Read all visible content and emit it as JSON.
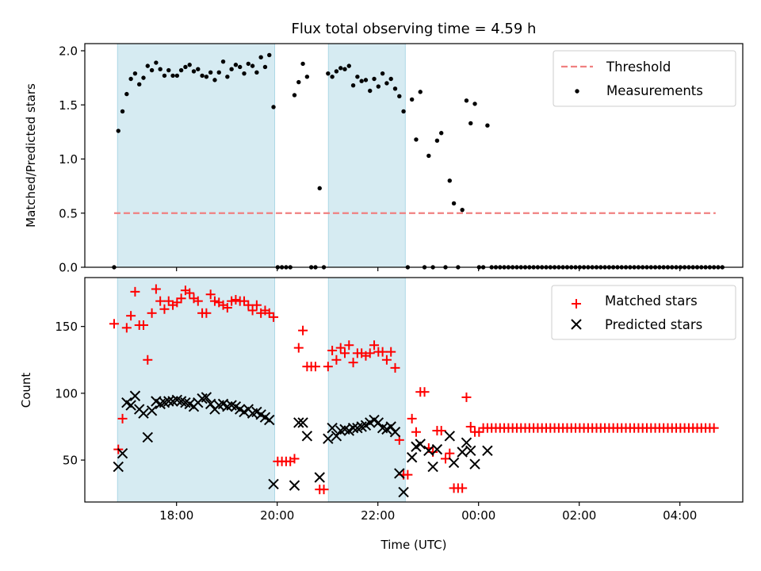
{
  "chart_data": [
    {
      "type": "scatter",
      "panel": "top",
      "title": "Flux total observing time = 4.59 h",
      "xlabel": "",
      "ylabel": "Matched/Predicted stars",
      "ylim": [
        0,
        2.066
      ],
      "xlim_hours": [
        16.178,
        29.249
      ],
      "yticks": [
        0.0,
        0.5,
        1.0,
        1.5,
        2.0
      ],
      "ytick_labels": [
        "0.0",
        "0.5",
        "1.0",
        "1.5",
        "2.0"
      ],
      "xticks_hours": [
        18,
        20,
        22,
        24,
        26,
        28
      ],
      "x_start_hour": 16.76,
      "x_step_minutes": 5,
      "shaded_intervals_hours": [
        [
          16.828,
          19.95
        ],
        [
          21.017,
          22.545
        ]
      ],
      "shade_color": "#add8e6",
      "threshold": {
        "name": "Threshold",
        "value": 0.5,
        "x_from_hour": 16.76,
        "x_to_hour": 28.71,
        "color": "#f08080",
        "style": "dashed"
      },
      "series": [
        {
          "name": "Measurements",
          "marker": "dot",
          "color": "#000000",
          "values": [
            0,
            1.26,
            1.44,
            1.6,
            1.74,
            1.79,
            1.69,
            1.75,
            1.86,
            1.82,
            1.89,
            1.83,
            1.77,
            1.82,
            1.77,
            1.77,
            1.82,
            1.85,
            1.87,
            1.81,
            1.83,
            1.77,
            1.76,
            1.8,
            1.73,
            1.8,
            1.9,
            1.76,
            1.83,
            1.87,
            1.85,
            1.79,
            1.88,
            1.86,
            1.8,
            1.94,
            1.85,
            1.96,
            1.48,
            0,
            0,
            0,
            0,
            1.59,
            1.71,
            1.88,
            1.76,
            0,
            0,
            0.73,
            0,
            1.79,
            1.76,
            1.81,
            1.84,
            1.83,
            1.86,
            1.68,
            1.76,
            1.72,
            1.73,
            1.63,
            1.74,
            1.67,
            1.79,
            1.7,
            1.74,
            1.65,
            1.58,
            1.44,
            0,
            1.55,
            1.18,
            1.62,
            0,
            1.03,
            0,
            1.17,
            1.24,
            0,
            0.8,
            0.59,
            0,
            0.53,
            1.54,
            1.33,
            1.51,
            0,
            0,
            1.31,
            0,
            0,
            0,
            0,
            0,
            0,
            0,
            0,
            0,
            0,
            0,
            0,
            0,
            0,
            0,
            0,
            0,
            0,
            0,
            0,
            0,
            0,
            0,
            0,
            0,
            0,
            0,
            0,
            0,
            0,
            0,
            0,
            0,
            0,
            0,
            0,
            0,
            0,
            0,
            0,
            0,
            0,
            0,
            0,
            0,
            0,
            0,
            0,
            0,
            0,
            0,
            0,
            0,
            0,
            0,
            0
          ]
        }
      ],
      "legend": {
        "position": "upper-right",
        "entries": [
          "Threshold",
          "Measurements"
        ]
      }
    },
    {
      "type": "scatter",
      "panel": "bottom",
      "title": "",
      "xlabel": "Time (UTC)",
      "ylabel": "Count",
      "ylim": [
        18.6,
        186.6
      ],
      "xlim_hours": [
        16.178,
        29.249
      ],
      "yticks": [
        50,
        100,
        150
      ],
      "ytick_labels": [
        "50",
        "100",
        "150"
      ],
      "xticks_hours": [
        18,
        20,
        22,
        24,
        26,
        28
      ],
      "xtick_labels": [
        "18:00",
        "20:00",
        "22:00",
        "00:00",
        "02:00",
        "04:00"
      ],
      "x_start_hour": 16.76,
      "x_step_minutes": 5,
      "shaded_intervals_hours": [
        [
          16.828,
          19.95
        ],
        [
          21.017,
          22.545
        ]
      ],
      "shade_color": "#add8e6",
      "series": [
        {
          "name": "Matched stars",
          "marker": "plus",
          "color": "#ff0000",
          "values": [
            152,
            58,
            81,
            149,
            158,
            176,
            151,
            151,
            125,
            160,
            178,
            169,
            163,
            169,
            166,
            168,
            171,
            177,
            175,
            171,
            169,
            160,
            160,
            174,
            169,
            168,
            166,
            164,
            169,
            170,
            169,
            169,
            166,
            162,
            166,
            160,
            162,
            160,
            157,
            49,
            49,
            49,
            49,
            51,
            134,
            147,
            120,
            120,
            120,
            28,
            28,
            120,
            132,
            125,
            134,
            130,
            136,
            123,
            130,
            130,
            128,
            130,
            136,
            131,
            131,
            125,
            131,
            119,
            65,
            39,
            39,
            81,
            71,
            101,
            101,
            59,
            56,
            72,
            72,
            51,
            55,
            29,
            29,
            29,
            97,
            75,
            71,
            71,
            74,
            74,
            74,
            74,
            74,
            74,
            74,
            74,
            74,
            74,
            74,
            74,
            74,
            74,
            74,
            74,
            74,
            74,
            74,
            74,
            74,
            74,
            74,
            74,
            74,
            74,
            74,
            74,
            74,
            74,
            74,
            74,
            74,
            74,
            74,
            74,
            74,
            74,
            74,
            74,
            74,
            74,
            74,
            74,
            74,
            74,
            74,
            74,
            74,
            74,
            74,
            74,
            74,
            74,
            74,
            74
          ]
        },
        {
          "name": "Predicted stars",
          "marker": "x",
          "color": "#000000",
          "values": [
            null,
            45,
            55,
            93,
            91,
            98,
            88,
            85,
            67,
            87,
            94,
            92,
            93,
            94,
            94,
            95,
            94,
            93,
            92,
            90,
            93,
            96,
            97,
            92,
            88,
            91,
            92,
            90,
            91,
            90,
            88,
            86,
            88,
            85,
            86,
            84,
            82,
            80,
            32,
            null,
            null,
            null,
            null,
            31,
            78,
            78,
            68,
            null,
            null,
            37,
            null,
            66,
            74,
            68,
            72,
            73,
            72,
            74,
            74,
            75,
            76,
            78,
            80,
            78,
            74,
            73,
            75,
            71,
            40,
            26,
            null,
            52,
            60,
            62,
            null,
            57,
            45,
            58,
            null,
            null,
            68,
            48,
            null,
            56,
            63,
            57,
            47,
            null,
            null,
            57
          ]
        }
      ],
      "legend": {
        "position": "upper-right",
        "entries": [
          "Matched stars",
          "Predicted stars"
        ]
      }
    }
  ]
}
